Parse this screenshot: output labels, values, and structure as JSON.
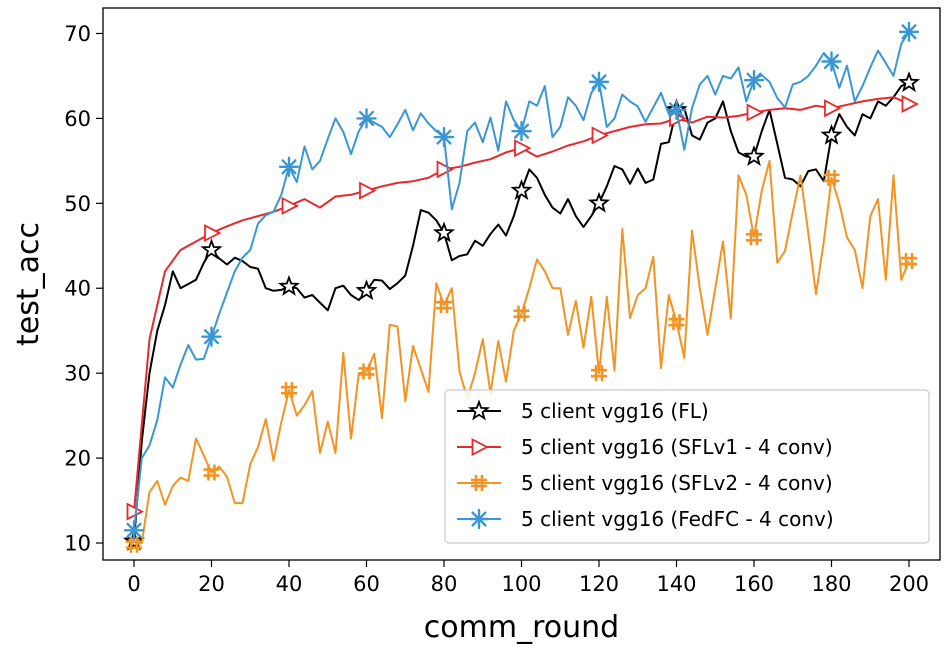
{
  "chart_data": {
    "type": "line",
    "title": "",
    "xlabel": "comm_round",
    "ylabel": "test_acc",
    "xlim": [
      -8,
      208
    ],
    "ylim": [
      8,
      73
    ],
    "xticks": [
      0,
      20,
      40,
      60,
      80,
      100,
      120,
      140,
      160,
      180,
      200
    ],
    "yticks": [
      10,
      20,
      30,
      40,
      50,
      60,
      70
    ],
    "grid": false,
    "legend_position": "lower-right",
    "series": [
      {
        "name": "5 client vgg16 (FL)",
        "color": "#000000",
        "marker": "star",
        "x": [
          0,
          2,
          4,
          6,
          8,
          10,
          12,
          14,
          16,
          18,
          20,
          22,
          24,
          26,
          28,
          30,
          32,
          34,
          36,
          38,
          40,
          42,
          44,
          46,
          48,
          50,
          52,
          54,
          56,
          58,
          60,
          62,
          64,
          66,
          68,
          70,
          72,
          74,
          76,
          78,
          80,
          82,
          84,
          86,
          88,
          90,
          92,
          94,
          96,
          98,
          100,
          102,
          104,
          106,
          108,
          110,
          112,
          114,
          116,
          118,
          120,
          122,
          124,
          126,
          128,
          130,
          132,
          134,
          136,
          138,
          140,
          142,
          144,
          146,
          148,
          150,
          152,
          154,
          156,
          158,
          160,
          162,
          164,
          166,
          168,
          170,
          172,
          174,
          176,
          178,
          180,
          182,
          184,
          186,
          188,
          190,
          192,
          194,
          196,
          198,
          200
        ],
        "y": [
          10.2,
          22,
          30,
          35,
          38,
          42,
          40,
          40.5,
          41,
          43,
          44.5,
          43.5,
          42.8,
          43.6,
          43.2,
          42.5,
          42.3,
          40,
          39.7,
          39.8,
          40.2,
          40,
          38.9,
          39.2,
          38.3,
          37.4,
          40,
          40.3,
          39.2,
          38.6,
          39.7,
          41,
          40.9,
          39.9,
          40.6,
          41.5,
          45,
          49.2,
          48.9,
          48,
          46.5,
          43.3,
          43.8,
          44,
          45.6,
          45,
          46.4,
          47.5,
          46.2,
          48.5,
          51.5,
          54,
          53,
          51,
          49.5,
          48.8,
          50.5,
          48.5,
          47.2,
          48.5,
          50,
          52,
          54.4,
          54,
          52.3,
          54.1,
          52.4,
          52.8,
          57,
          57.2,
          61,
          61.2,
          58,
          57.5,
          59.5,
          60,
          62,
          58.5,
          56,
          55.5,
          55.5,
          58.5,
          61,
          57,
          53,
          52.8,
          52,
          53.8,
          54,
          52.6,
          58,
          60.5,
          59,
          58,
          60.5,
          60,
          62,
          61.5,
          62.5,
          63.8,
          64.2
        ],
        "markers_at": [
          0,
          20,
          40,
          60,
          80,
          100,
          120,
          140,
          160,
          180,
          200
        ]
      },
      {
        "name": "5 client vgg16 (SFLv1 - 4 conv)",
        "color": "#e8282b",
        "marker": "triangle-right",
        "x": [
          0,
          4,
          8,
          12,
          16,
          20,
          24,
          28,
          32,
          36,
          40,
          44,
          48,
          52,
          56,
          60,
          64,
          68,
          72,
          76,
          80,
          84,
          88,
          92,
          96,
          100,
          104,
          108,
          112,
          116,
          120,
          124,
          128,
          132,
          136,
          140,
          144,
          148,
          152,
          156,
          160,
          164,
          168,
          172,
          176,
          180,
          184,
          188,
          192,
          196,
          200
        ],
        "y": [
          13.7,
          34,
          42,
          44.5,
          45.5,
          46.5,
          47.3,
          48,
          48.5,
          49,
          49.7,
          50.5,
          49.5,
          50.8,
          51,
          51.5,
          52,
          52.4,
          52.6,
          53,
          54,
          54.3,
          54.8,
          55.2,
          56,
          56.5,
          55.5,
          56.1,
          56.8,
          57.3,
          58,
          58.5,
          59,
          59.3,
          59.4,
          60,
          59.5,
          60.2,
          60.1,
          60.3,
          60.7,
          61,
          61.2,
          61,
          61.5,
          61.2,
          61.6,
          62,
          62.3,
          62.5,
          61.7
        ],
        "markers_at": [
          0,
          20,
          40,
          60,
          80,
          100,
          120,
          140,
          160,
          180,
          200
        ]
      },
      {
        "name": "5 client vgg16 (SFLv2 - 4 conv)",
        "color": "#f39322",
        "marker": "double-plus",
        "x": [
          0,
          2,
          4,
          6,
          8,
          10,
          12,
          14,
          16,
          18,
          20,
          22,
          24,
          26,
          28,
          30,
          32,
          34,
          36,
          38,
          40,
          42,
          44,
          46,
          48,
          50,
          52,
          54,
          56,
          58,
          60,
          62,
          64,
          66,
          68,
          70,
          72,
          74,
          76,
          78,
          80,
          82,
          84,
          86,
          88,
          90,
          92,
          94,
          96,
          98,
          100,
          102,
          104,
          106,
          108,
          110,
          112,
          114,
          116,
          118,
          120,
          122,
          124,
          126,
          128,
          130,
          132,
          134,
          136,
          138,
          140,
          142,
          144,
          146,
          148,
          150,
          152,
          154,
          156,
          158,
          160,
          162,
          164,
          166,
          168,
          170,
          172,
          174,
          176,
          178,
          180,
          182,
          184,
          186,
          188,
          190,
          192,
          194,
          196,
          198,
          200
        ],
        "y": [
          9.8,
          10,
          16,
          17.3,
          14.5,
          16.7,
          17.7,
          17.3,
          22.3,
          20.3,
          18.3,
          19,
          17.8,
          14.7,
          14.7,
          19.3,
          21.3,
          24.6,
          19.7,
          24.2,
          28,
          25,
          26.2,
          27.9,
          20.6,
          24.3,
          20.6,
          32.4,
          22.3,
          30,
          30.2,
          32.3,
          24.7,
          35.7,
          35.5,
          26.7,
          33.2,
          30.5,
          27.8,
          40.6,
          38,
          40,
          30.2,
          27,
          30,
          34,
          27.6,
          33.8,
          29,
          35,
          37,
          40,
          43.4,
          42,
          40,
          40,
          34.5,
          38.5,
          33,
          39,
          30,
          39,
          30.3,
          47,
          36.5,
          39.2,
          40,
          43.7,
          30.6,
          39.2,
          36,
          31.8,
          46.8,
          40,
          34.5,
          40,
          45.5,
          36.4,
          53.3,
          51,
          46,
          51.5,
          55,
          43,
          44.4,
          49,
          53.3,
          46.5,
          39.3,
          45.5,
          53,
          50,
          46,
          44.5,
          40,
          48.5,
          50.5,
          41,
          53.3,
          41,
          43.2
        ],
        "markers_at": [
          0,
          20,
          40,
          60,
          80,
          100,
          120,
          140,
          160,
          180,
          200
        ]
      },
      {
        "name": "5 client vgg16 (FedFC - 4 conv)",
        "color": "#3a97d3",
        "marker": "asterisk",
        "x": [
          0,
          2,
          4,
          6,
          8,
          10,
          12,
          14,
          16,
          18,
          20,
          22,
          24,
          26,
          28,
          30,
          32,
          34,
          36,
          38,
          40,
          42,
          44,
          46,
          48,
          50,
          52,
          54,
          56,
          58,
          60,
          62,
          64,
          66,
          68,
          70,
          72,
          74,
          76,
          78,
          80,
          82,
          84,
          86,
          88,
          90,
          92,
          94,
          96,
          98,
          100,
          102,
          104,
          106,
          108,
          110,
          112,
          114,
          116,
          118,
          120,
          122,
          124,
          126,
          128,
          130,
          132,
          134,
          136,
          138,
          140,
          142,
          144,
          146,
          148,
          150,
          152,
          154,
          156,
          158,
          160,
          162,
          164,
          166,
          168,
          170,
          172,
          174,
          176,
          178,
          180,
          182,
          184,
          186,
          188,
          190,
          192,
          194,
          196,
          198,
          200
        ],
        "y": [
          11.5,
          20,
          21.5,
          24.5,
          29.5,
          28.3,
          31,
          33.3,
          31.6,
          31.7,
          34.3,
          37,
          39.5,
          42,
          43.6,
          44.5,
          47.6,
          48.6,
          49,
          51,
          54.3,
          52.5,
          56.7,
          54,
          55,
          57.6,
          60,
          58.4,
          55.8,
          58.5,
          60,
          59.5,
          59,
          57.8,
          59.3,
          61,
          58.6,
          60.6,
          59.4,
          58.5,
          57.8,
          49.3,
          52.4,
          58.5,
          59.5,
          57.2,
          60.1,
          56.2,
          62,
          59.8,
          58.5,
          62,
          61.5,
          63.8,
          57.8,
          59,
          62.5,
          61.5,
          59.8,
          63,
          64.3,
          59,
          60,
          62.8,
          62,
          61.4,
          59.6,
          61.3,
          63,
          60.5,
          61,
          56.3,
          61.2,
          64,
          65,
          62.8,
          65,
          64.7,
          66,
          62,
          64.5,
          65.1,
          64.3,
          62.4,
          61.3,
          64,
          64.3,
          65,
          66.2,
          67.7,
          66.7,
          63.6,
          66.2,
          62,
          63.8,
          66,
          68,
          66.5,
          65,
          68.8,
          70.2
        ],
        "markers_at": [
          0,
          20,
          40,
          60,
          80,
          100,
          120,
          140,
          160,
          180,
          200
        ]
      }
    ]
  }
}
